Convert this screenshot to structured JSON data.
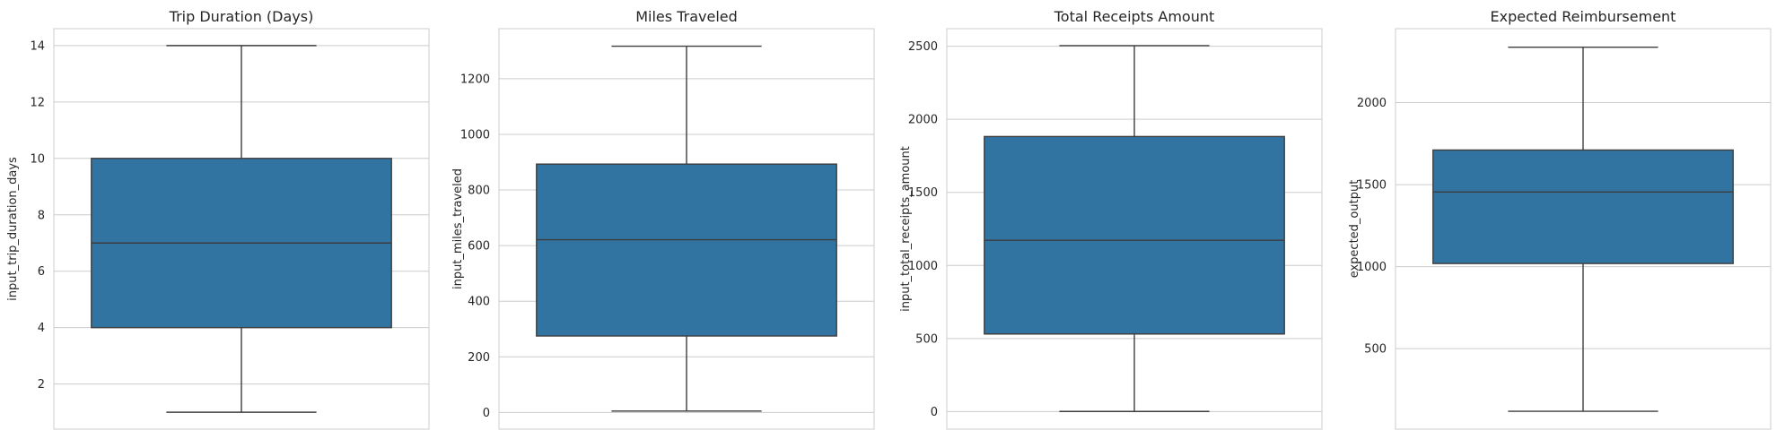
{
  "chart_data": [
    {
      "type": "box",
      "title": "Trip Duration (Days)",
      "xlabel": "",
      "ylabel": "input_trip_duration_days",
      "ylim": [
        0.4,
        14.6
      ],
      "yticks": [
        2,
        4,
        6,
        8,
        10,
        12,
        14
      ],
      "grid": true,
      "box": {
        "whisker_low": 1,
        "q1": 4,
        "median": 7,
        "q3": 10,
        "whisker_high": 14
      },
      "color": "#3274a1"
    },
    {
      "type": "box",
      "title": "Miles Traveled",
      "xlabel": "",
      "ylabel": "input_miles_traveled",
      "ylim": [
        -60,
        1380
      ],
      "yticks": [
        0,
        200,
        400,
        600,
        800,
        1000,
        1200
      ],
      "grid": true,
      "box": {
        "whisker_low": 5,
        "q1": 275,
        "median": 621,
        "q3": 893,
        "whisker_high": 1317
      },
      "color": "#3274a1"
    },
    {
      "type": "box",
      "title": "Total Receipts Amount",
      "xlabel": "",
      "ylabel": "input_total_receipts_amount",
      "ylim": [
        -120,
        2620
      ],
      "yticks": [
        0,
        500,
        1000,
        1500,
        2000,
        2500
      ],
      "grid": true,
      "box": {
        "whisker_low": 1,
        "q1": 531,
        "median": 1172,
        "q3": 1882,
        "whisker_high": 2504
      },
      "color": "#3274a1"
    },
    {
      "type": "box",
      "title": "Expected Reimbursement",
      "xlabel": "",
      "ylabel": "expected_output",
      "ylim": [
        9,
        2451
      ],
      "yticks": [
        500,
        1000,
        1500,
        2000
      ],
      "grid": true,
      "box": {
        "whisker_low": 118,
        "q1": 1019,
        "median": 1455,
        "q3": 1711,
        "whisker_high": 2338
      },
      "color": "#3274a1"
    }
  ]
}
